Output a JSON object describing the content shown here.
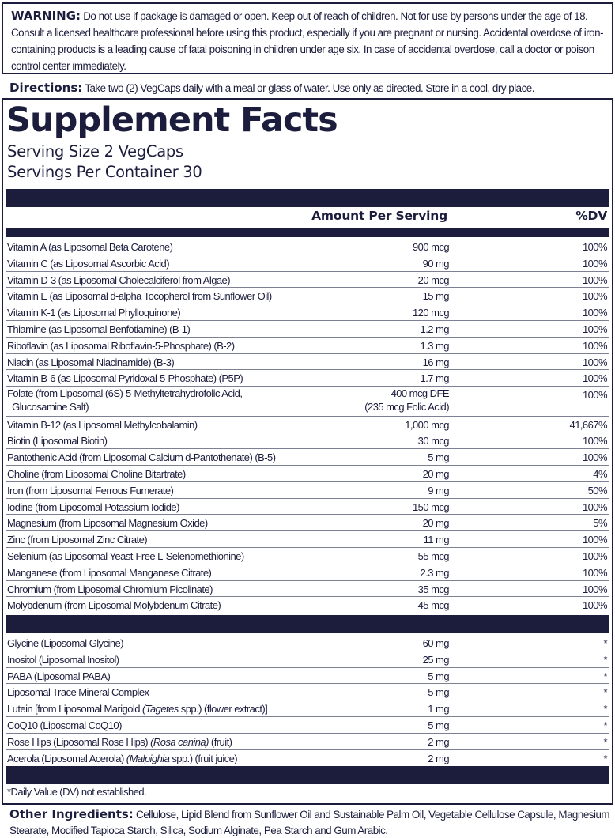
{
  "warning": {
    "label": "WARNING:",
    "text": " Do not use if package is damaged or open. Keep out of reach of children. Not for use by persons under the age of 18. Consult a licensed healthcare professional before using this product, especially if you are pregnant or nursing. Accidental overdose of iron-containing products is a leading cause of fatal poisoning in children under age six. In case of accidental overdose, call a doctor or poison control center immediately."
  },
  "directions": {
    "label": "Directions:",
    "text": " Take two (2) VegCaps daily with a meal or glass of water. Use only as directed. Store in a cool, dry place."
  },
  "facts": {
    "title": "Supplement Facts",
    "serving_size": "Serving Size 2 VegCaps",
    "servings_per_container": "Servings Per Container 30",
    "header_amount": "Amount Per Serving",
    "header_dv": "%DV",
    "colors": {
      "primary": "#1c1d3d",
      "row_divider": "#7d7f93"
    },
    "group1": [
      {
        "name": "Vitamin A (as Liposomal Beta Carotene)",
        "amount": "900 mcg",
        "dv": "100%"
      },
      {
        "name": "Vitamin C (as Liposomal Ascorbic Acid)",
        "amount": "90 mg",
        "dv": "100%"
      },
      {
        "name": "Vitamin D-3 (as Liposomal Cholecalciferol from Algae)",
        "amount": "20 mcg",
        "dv": "100%"
      },
      {
        "name": "Vitamin E (as Liposomal d-alpha Tocopherol from Sunflower Oil)",
        "amount": "15 mg",
        "dv": "100%"
      },
      {
        "name": "Vitamin K-1 (as Liposomal Phylloquinone)",
        "amount": "120 mcg",
        "dv": "100%"
      },
      {
        "name": "Thiamine (as Liposomal Benfotiamine) (B-1)",
        "amount": "1.2 mg",
        "dv": "100%"
      },
      {
        "name": "Riboflavin (as Liposomal Riboflavin-5-Phosphate) (B-2)",
        "amount": "1.3 mg",
        "dv": "100%"
      },
      {
        "name": "Niacin (as Liposomal Niacinamide) (B-3)",
        "amount": "16 mg",
        "dv": "100%"
      },
      {
        "name": "Vitamin B-6 (as Liposomal Pyridoxal-5-Phosphate) (P5P)",
        "amount": "1.7 mg",
        "dv": "100%"
      },
      {
        "name_line1": "Folate (from Liposomal (6S)-5-Methyltetrahydrofolic Acid,",
        "name_line2": "  Glucosamine Salt)",
        "amount_line1": "400 mcg DFE",
        "amount_line2": "(235 mcg Folic Acid)",
        "dv": "100%"
      },
      {
        "name": "Vitamin B-12 (as Liposomal Methylcobalamin)",
        "amount": "1,000 mcg",
        "dv": "41,667%"
      },
      {
        "name": "Biotin (Liposomal Biotin)",
        "amount": "30 mcg",
        "dv": "100%"
      },
      {
        "name": "Pantothenic Acid (from Liposomal Calcium d-Pantothenate) (B-5)",
        "amount": "5 mg",
        "dv": "100%"
      },
      {
        "name": "Choline (from Liposomal Choline Bitartrate)",
        "amount": "20 mg",
        "dv": "4%"
      },
      {
        "name": "Iron (from Liposomal Ferrous Fumerate)",
        "amount": "9 mg",
        "dv": "50%"
      },
      {
        "name": "Iodine (from Liposomal Potassium Iodide)",
        "amount": "150 mcg",
        "dv": "100%"
      },
      {
        "name": "Magnesium (from Liposomal Magnesium Oxide)",
        "amount": "20 mg",
        "dv": "5%"
      },
      {
        "name": "Zinc (from Liposomal Zinc Citrate)",
        "amount": "11 mg",
        "dv": "100%"
      },
      {
        "name": "Selenium (as Liposomal Yeast-Free L-Selenomethionine)",
        "amount": "55 mcg",
        "dv": "100%"
      },
      {
        "name": "Manganese (from Liposomal Manganese Citrate)",
        "amount": "2.3 mg",
        "dv": "100%"
      },
      {
        "name": "Chromium (from Liposomal Chromium Picolinate)",
        "amount": "35 mcg",
        "dv": "100%"
      },
      {
        "name": "Molybdenum (from Liposomal Molybdenum Citrate)",
        "amount": "45 mcg",
        "dv": "100%"
      }
    ],
    "group2": [
      {
        "name": "Glycine (Liposomal Glycine)",
        "amount": "60 mg",
        "dv": "*"
      },
      {
        "name": "Inositol (Liposomal Inositol)",
        "amount": "25 mg",
        "dv": "*"
      },
      {
        "name": "PABA (Liposomal PABA)",
        "amount": "5 mg",
        "dv": "*"
      },
      {
        "name": "Liposomal Trace Mineral Complex",
        "amount": "5 mg",
        "dv": "*"
      },
      {
        "name_a": "Lutein [from Liposomal Marigold ",
        "name_i": "(Tagetes",
        "name_b": " spp.) (flower extract)]",
        "amount": "1 mg",
        "dv": "*"
      },
      {
        "name": "CoQ10 (Liposomal CoQ10)",
        "amount": "5 mg",
        "dv": "*"
      },
      {
        "name_a": "Rose Hips (Liposomal Rose Hips) ",
        "name_i": "(Rosa canina)",
        "name_b": " (fruit)",
        "amount": "2 mg",
        "dv": "*"
      },
      {
        "name_a": "Acerola (Liposomal Acerola) ",
        "name_i": "(Malpighia",
        "name_b": " spp.) (fruit juice)",
        "amount": "2 mg",
        "dv": "*"
      }
    ],
    "footnote": "*Daily Value (DV) not established."
  },
  "other_ingredients": {
    "label": "Other Ingredients:",
    "text": " Cellulose, Lipid Blend from Sunflower Oil and Sustainable Palm Oil, Vegetable Cellulose Capsule, Magnesium Stearate, Modified Tapioca Starch, Silica, Sodium Alginate, Pea Starch and Gum Arabic."
  }
}
